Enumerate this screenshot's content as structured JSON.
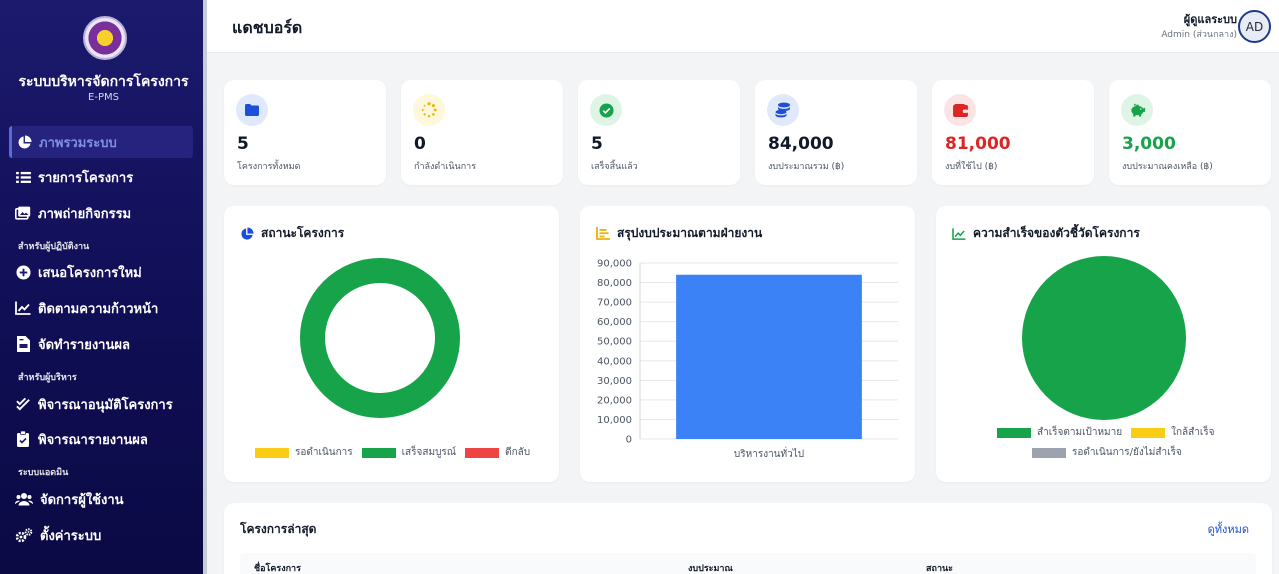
{
  "sidebar": {
    "title": "ระบบบริหารจัดการโครงการ",
    "subtitle": "E-PMS",
    "items": [
      {
        "label": "ภาพรวมระบบ",
        "icon": "pie-chart-icon"
      },
      {
        "label": "รายการโครงการ",
        "icon": "list-icon"
      },
      {
        "label": "ภาพถ่ายกิจกรรม",
        "icon": "images-icon"
      },
      {
        "label": "เสนอโครงการใหม่",
        "icon": "plus-circle-icon"
      },
      {
        "label": "ติดตามความก้าวหน้า",
        "icon": "chart-line-icon"
      },
      {
        "label": "จัดทำรายงานผล",
        "icon": "file-invoice-icon"
      },
      {
        "label": "พิจารณาอนุมัติโครงการ",
        "icon": "check-double-icon"
      },
      {
        "label": "พิจารณารายงานผล",
        "icon": "clipboard-check-icon"
      },
      {
        "label": "จัดการผู้ใช้งาน",
        "icon": "users-icon"
      },
      {
        "label": "ตั้งค่าระบบ",
        "icon": "cogs-icon"
      }
    ],
    "sections": [
      "สำหรับผู้ปฏิบัติงาน",
      "สำหรับผู้บริหาร",
      "ระบบแอดมิน"
    ]
  },
  "header": {
    "title": "แดชบอร์ด",
    "user_name": "ผู้ดูแลระบบ",
    "user_role": "Admin (ส่วนกลาง)",
    "avatar": "AD"
  },
  "stats": [
    {
      "value": "5",
      "label": "โครงการทั้งหมด",
      "icon": "folder-icon",
      "color": "#1d4ed8",
      "bg": "#e0e9fb"
    },
    {
      "value": "0",
      "label": "กำลังดำเนินการ",
      "icon": "spinner-icon",
      "color": "#eab308",
      "bg": "#fdf7dc"
    },
    {
      "value": "5",
      "label": "เสร็จสิ้นแล้ว",
      "icon": "check-circle-icon",
      "color": "#16a34a",
      "bg": "#def5e6"
    },
    {
      "value": "84,000",
      "label": "งบประมาณรวม (฿)",
      "icon": "coins-icon",
      "color": "#1d4ed8",
      "bg": "#e0e9fb"
    },
    {
      "value": "81,000",
      "label": "งบที่ใช้ไป (฿)",
      "icon": "wallet-icon",
      "color": "#dc2626",
      "bg": "#fde4e4"
    },
    {
      "value": "3,000",
      "label": "งบประมาณคงเหลือ (฿)",
      "icon": "piggy-bank-icon",
      "color": "#16a34a",
      "bg": "#def5e6"
    }
  ],
  "status_panel": {
    "title": "สถานะโครงการ",
    "legend": [
      {
        "label": "รอดำเนินการ",
        "color": "#facc15"
      },
      {
        "label": "เสร็จสมบูรณ์",
        "color": "#16a34a"
      },
      {
        "label": "ตีกลับ",
        "color": "#ef4444"
      }
    ]
  },
  "budget_panel": {
    "title": "สรุปงบประมาณตามฝ่ายงาน"
  },
  "kpi_panel": {
    "title": "ความสำเร็จของตัวชี้วัดโครงการ",
    "legend": [
      {
        "label": "สำเร็จตามเป้าหมาย",
        "color": "#16a34a"
      },
      {
        "label": "ใกล้สำเร็จ",
        "color": "#facc15"
      },
      {
        "label": "รอดำเนินการ/ยังไม่สำเร็จ",
        "color": "#9ca3af"
      }
    ]
  },
  "chart_data": [
    {
      "type": "pie",
      "title": "สถานะโครงการ",
      "categories": [
        "รอดำเนินการ",
        "เสร็จสมบูรณ์",
        "ตีกลับ"
      ],
      "values": [
        0,
        5,
        0
      ],
      "colors": [
        "#facc15",
        "#16a34a",
        "#ef4444"
      ],
      "donut": true,
      "legend": "bottom"
    },
    {
      "type": "bar",
      "title": "สรุปงบประมาณตามฝ่ายงาน",
      "categories": [
        "บริหารงานทั่วไป"
      ],
      "values": [
        84000
      ],
      "color": "#3b82f6",
      "ylim": [
        0,
        90000
      ],
      "yticks": [
        "0",
        "10,000",
        "20,000",
        "30,000",
        "40,000",
        "50,000",
        "60,000",
        "70,000",
        "80,000",
        "90,000"
      ],
      "grid": true
    },
    {
      "type": "pie",
      "title": "ความสำเร็จของตัวชี้วัดโครงการ",
      "categories": [
        "สำเร็จตามเป้าหมาย",
        "ใกล้สำเร็จ",
        "รอดำเนินการ/ยังไม่สำเร็จ"
      ],
      "values": [
        1,
        0,
        0
      ],
      "colors": [
        "#16a34a",
        "#facc15",
        "#9ca3af"
      ],
      "legend": "bottom"
    }
  ],
  "recent": {
    "title": "โครงการล่าสุด",
    "view_all": "ดูทั้งหมด",
    "columns": [
      "ชื่อโครงการ",
      "งบประมาณ",
      "สถานะ"
    ]
  }
}
